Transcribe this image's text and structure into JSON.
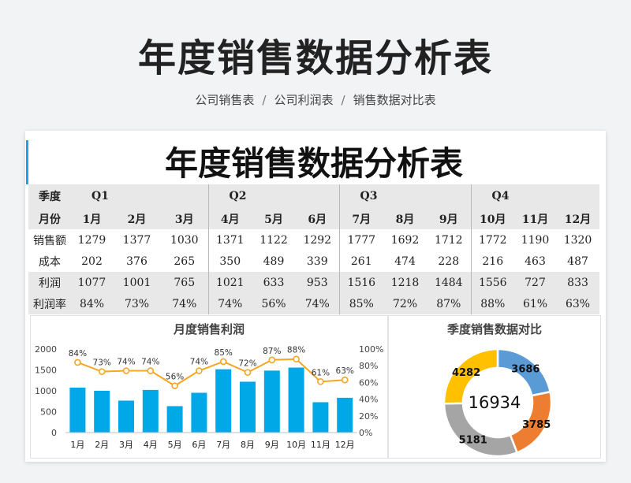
{
  "header": {
    "title": "年度销售数据分析表",
    "breadcrumbs": [
      "公司销售表",
      "公司利润表",
      "销售数据对比表"
    ],
    "separator": "/"
  },
  "sheet": {
    "title": "年度销售数据分析表",
    "quarter_row_label": "季度",
    "quarters": [
      "Q1",
      "Q2",
      "Q3",
      "Q4"
    ],
    "month_row_label": "月份",
    "months": [
      "1月",
      "2月",
      "3月",
      "4月",
      "5月",
      "6月",
      "7月",
      "8月",
      "9月",
      "10月",
      "11月",
      "12月"
    ],
    "rows": [
      {
        "label": "销售额",
        "values": [
          "1279",
          "1377",
          "1030",
          "1371",
          "1122",
          "1292",
          "1777",
          "1692",
          "1712",
          "1772",
          "1190",
          "1320"
        ]
      },
      {
        "label": "成本",
        "values": [
          "202",
          "376",
          "265",
          "350",
          "489",
          "339",
          "261",
          "474",
          "228",
          "216",
          "463",
          "487"
        ]
      },
      {
        "label": "利润",
        "values": [
          "1077",
          "1001",
          "765",
          "1021",
          "633",
          "953",
          "1516",
          "1218",
          "1484",
          "1556",
          "727",
          "833"
        ]
      },
      {
        "label": "利润率",
        "values": [
          "84%",
          "73%",
          "74%",
          "74%",
          "56%",
          "74%",
          "85%",
          "72%",
          "87%",
          "88%",
          "61%",
          "63%"
        ]
      }
    ]
  },
  "chart_data": [
    {
      "type": "bar",
      "title": "月度销售利润",
      "categories": [
        "1月",
        "2月",
        "3月",
        "4月",
        "5月",
        "6月",
        "7月",
        "8月",
        "9月",
        "10月",
        "11月",
        "12月"
      ],
      "series": [
        {
          "name": "",
          "type": "bar",
          "axis": "left",
          "values": [
            1077,
            1001,
            765,
            1021,
            633,
            953,
            1516,
            1218,
            1484,
            1556,
            727,
            833
          ],
          "color": "#00a8e8"
        },
        {
          "name": "",
          "type": "line",
          "axis": "right",
          "values": [
            84,
            73,
            74,
            74,
            56,
            74,
            85,
            72,
            87,
            88,
            61,
            63
          ],
          "labels": [
            "84%",
            "73%",
            "74%",
            "74%",
            "56%",
            "74%",
            "85%",
            "72%",
            "87%",
            "88%",
            "61%",
            "63%"
          ],
          "color": "#f5a623"
        }
      ],
      "ylim": [
        0,
        2000
      ],
      "yticks": [
        "2000",
        "1500",
        "1000",
        "500",
        "0"
      ],
      "y2lim": [
        0,
        100
      ],
      "y2ticks": [
        "100%",
        "80%",
        "60%",
        "40%",
        "20%",
        "0%"
      ],
      "grid": false,
      "legend": "none"
    },
    {
      "type": "pie",
      "title": "季度销售数据对比",
      "donut": true,
      "center_label": "16934",
      "slices": [
        {
          "label": "Q1",
          "value": 3686,
          "text": "3686",
          "color": "#5b9bd5"
        },
        {
          "label": "Q2",
          "value": 3785,
          "text": "3785",
          "color": "#ed7d31"
        },
        {
          "label": "Q3",
          "value": 5181,
          "text": "5181",
          "color": "#a5a5a5"
        },
        {
          "label": "Q4",
          "value": 4282,
          "text": "4282",
          "color": "#ffc000"
        }
      ]
    }
  ],
  "colors": {
    "accent": "#1da1f2",
    "bar": "#00a8e8",
    "line": "#f5a623"
  }
}
